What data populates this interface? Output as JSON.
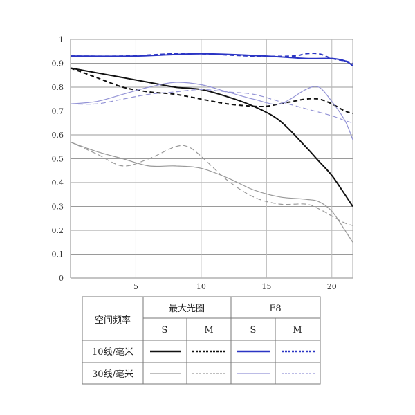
{
  "chart_data": {
    "type": "line",
    "xlim": [
      0,
      21.6
    ],
    "ylim": [
      0,
      1
    ],
    "x_ticks": [
      "5",
      "10",
      "15",
      "20"
    ],
    "y_ticks": [
      "0",
      "0.1",
      "0.2",
      "0.3",
      "0.4",
      "0.5",
      "0.6",
      "0.7",
      "0.8",
      "0.9",
      "1"
    ],
    "grid": "horizontal",
    "series": [
      {
        "key": "max_10_S",
        "color": "#111111",
        "dash": "solid",
        "weight": "thick",
        "x": [
          0,
          2,
          4,
          6,
          8,
          10,
          12,
          14,
          16,
          18,
          19,
          20,
          21,
          21.6
        ],
        "y": [
          0.88,
          0.86,
          0.84,
          0.82,
          0.8,
          0.79,
          0.76,
          0.72,
          0.66,
          0.55,
          0.49,
          0.43,
          0.35,
          0.3
        ]
      },
      {
        "key": "max_10_M",
        "color": "#111111",
        "dash": "dashed",
        "weight": "thick",
        "x": [
          0,
          2,
          4,
          6,
          8,
          10,
          12,
          14,
          15,
          16,
          17,
          18,
          19,
          20,
          21,
          21.6
        ],
        "y": [
          0.88,
          0.84,
          0.8,
          0.78,
          0.77,
          0.75,
          0.73,
          0.72,
          0.72,
          0.73,
          0.74,
          0.75,
          0.75,
          0.73,
          0.7,
          0.69
        ]
      },
      {
        "key": "f8_10_S",
        "color": "#2b35c4",
        "dash": "solid",
        "weight": "thick",
        "x": [
          0,
          5,
          10,
          15,
          18,
          20,
          21,
          21.6
        ],
        "y": [
          0.93,
          0.93,
          0.94,
          0.93,
          0.92,
          0.92,
          0.91,
          0.89
        ]
      },
      {
        "key": "f8_10_M",
        "color": "#2b35c4",
        "dash": "dashed",
        "weight": "thick",
        "x": [
          0,
          4,
          8,
          10,
          14,
          17,
          18,
          19,
          20,
          21,
          21.6
        ],
        "y": [
          0.93,
          0.93,
          0.94,
          0.94,
          0.93,
          0.93,
          0.94,
          0.94,
          0.92,
          0.91,
          0.9
        ]
      },
      {
        "key": "max_30_S",
        "color": "#999999",
        "dash": "solid",
        "weight": "thin",
        "x": [
          0,
          2,
          4,
          6,
          8,
          10,
          12,
          14,
          16,
          18,
          19,
          20,
          21,
          21.6
        ],
        "y": [
          0.57,
          0.53,
          0.5,
          0.47,
          0.47,
          0.46,
          0.42,
          0.37,
          0.34,
          0.33,
          0.32,
          0.28,
          0.2,
          0.15
        ]
      },
      {
        "key": "max_30_M",
        "color": "#999999",
        "dash": "dashed",
        "weight": "thin",
        "x": [
          0,
          2,
          4,
          6,
          8,
          9,
          10,
          12,
          14,
          16,
          18,
          19,
          20,
          21,
          21.6
        ],
        "y": [
          0.57,
          0.52,
          0.47,
          0.5,
          0.55,
          0.55,
          0.51,
          0.41,
          0.34,
          0.31,
          0.31,
          0.29,
          0.26,
          0.23,
          0.22
        ]
      },
      {
        "key": "f8_30_S",
        "color": "#9494d6",
        "dash": "solid",
        "weight": "thin",
        "x": [
          0,
          2,
          4,
          6,
          8,
          10,
          12,
          14,
          16,
          18,
          19,
          20,
          21,
          21.6
        ],
        "y": [
          0.73,
          0.74,
          0.77,
          0.8,
          0.82,
          0.81,
          0.78,
          0.75,
          0.73,
          0.79,
          0.8,
          0.74,
          0.66,
          0.58
        ]
      },
      {
        "key": "f8_30_M",
        "color": "#9494d6",
        "dash": "dashed",
        "weight": "thin",
        "x": [
          0,
          2,
          4,
          6,
          8,
          10,
          12,
          14,
          16,
          18,
          20,
          21,
          21.6
        ],
        "y": [
          0.73,
          0.73,
          0.75,
          0.77,
          0.78,
          0.79,
          0.78,
          0.77,
          0.74,
          0.71,
          0.68,
          0.66,
          0.65
        ]
      }
    ]
  },
  "legend": {
    "header_row": "空间频率",
    "group_1": "最大光圈",
    "group_2": "F8",
    "col_s1": "S",
    "col_m1": "M",
    "col_s2": "S",
    "col_m2": "M",
    "row_1": "10线/毫米",
    "row_2": "30线/毫米"
  }
}
